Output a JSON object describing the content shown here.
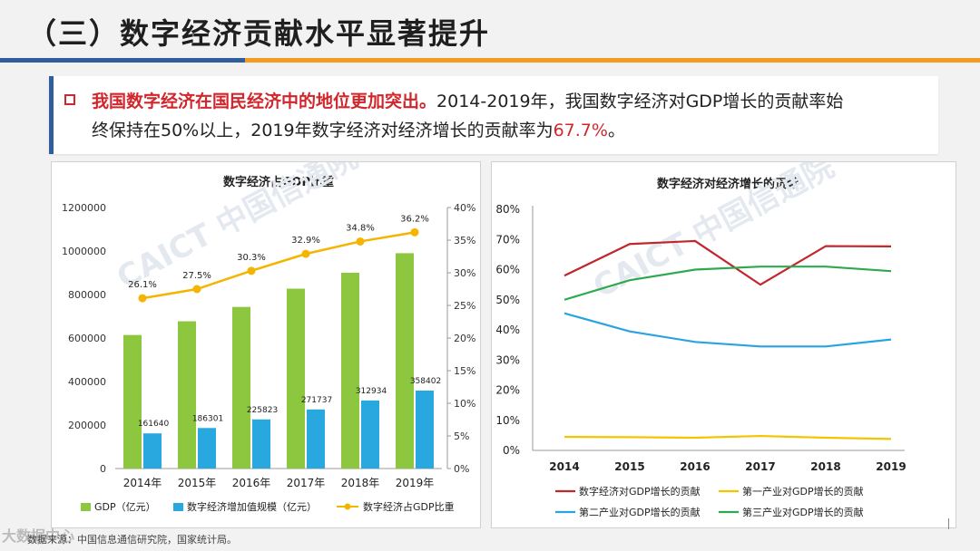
{
  "header": {
    "title": "（三）数字经济贡献水平显著提升"
  },
  "callout": {
    "lead": "我国数字经济在国民经济中的地位更加突出。",
    "text1": "2014-2019年，我国数字经济对GDP增长的贡献率始",
    "text2": "终保持在50%以上，2019年数字经济对经济增长的贡献率为",
    "highlight": "67.7%",
    "end": "。"
  },
  "watermark_text": "CAICT 中国信通院",
  "footer": {
    "source": "数据来源：中国信息通信研究院，国家统计局。",
    "corner_logo": "大数据中心"
  },
  "colors": {
    "gdp_bar": "#8dc63f",
    "digital_bar": "#29a8e0",
    "share_line": "#f5b400",
    "series_digital": "#c0272d",
    "series_primary": "#f5c400",
    "series_secondary": "#2aa4e0",
    "series_tertiary": "#2da94f"
  },
  "chart_data": [
    {
      "type": "bar",
      "title": "数字经济占GDP比重",
      "categories": [
        "2014年",
        "2015年",
        "2016年",
        "2017年",
        "2018年",
        "2019年"
      ],
      "series": [
        {
          "name": "GDP（亿元）",
          "values": [
            614000,
            677000,
            743000,
            827000,
            900000,
            990000
          ]
        },
        {
          "name": "数字经济增加值规模（亿元）",
          "values": [
            161640,
            186301,
            225823,
            271737,
            312934,
            358402
          ]
        }
      ],
      "line_series": {
        "name": "数字经济占GDP比重",
        "values": [
          26.1,
          27.5,
          30.3,
          32.9,
          34.8,
          36.2
        ],
        "labels": [
          "26.1%",
          "27.5%",
          "30.3%",
          "32.9%",
          "34.8%",
          "36.2%"
        ]
      },
      "y_left": {
        "range": [
          0,
          1200000
        ],
        "ticks": [
          "0",
          "200000",
          "400000",
          "600000",
          "800000",
          "1000000",
          "1200000"
        ]
      },
      "y_right": {
        "range": [
          0,
          40
        ],
        "ticks": [
          "0%",
          "5%",
          "10%",
          "15%",
          "20%",
          "25%",
          "30%",
          "35%",
          "40%"
        ]
      },
      "bar_labels": [
        "161640",
        "186301",
        "225823",
        "271737",
        "312934",
        "358402"
      ],
      "legend": [
        "GDP（亿元）",
        "数字经济增加值规模（亿元）",
        "数字经济占GDP比重"
      ]
    },
    {
      "type": "line",
      "title": "数字经济对经济增长的贡献",
      "x": [
        "2014",
        "2015",
        "2016",
        "2017",
        "2018",
        "2019"
      ],
      "ylim": [
        0,
        80
      ],
      "y_ticks": [
        "0%",
        "10%",
        "20%",
        "30%",
        "40%",
        "50%",
        "60%",
        "70%",
        "80%"
      ],
      "series": [
        {
          "name": "数字经济对GDP增长的贡献",
          "values": [
            58,
            68.5,
            69.5,
            55,
            67.8,
            67.7
          ]
        },
        {
          "name": "第一产业对GDP增长的贡献",
          "values": [
            4.5,
            4.4,
            4.2,
            4.8,
            4.2,
            3.8
          ]
        },
        {
          "name": "第二产业对GDP增长的贡献",
          "values": [
            45.5,
            39.5,
            36,
            34.5,
            34.5,
            36.8
          ]
        },
        {
          "name": "第三产业对GDP增长的贡献",
          "values": [
            50,
            56.5,
            60,
            61,
            61,
            59.5
          ]
        }
      ]
    }
  ]
}
